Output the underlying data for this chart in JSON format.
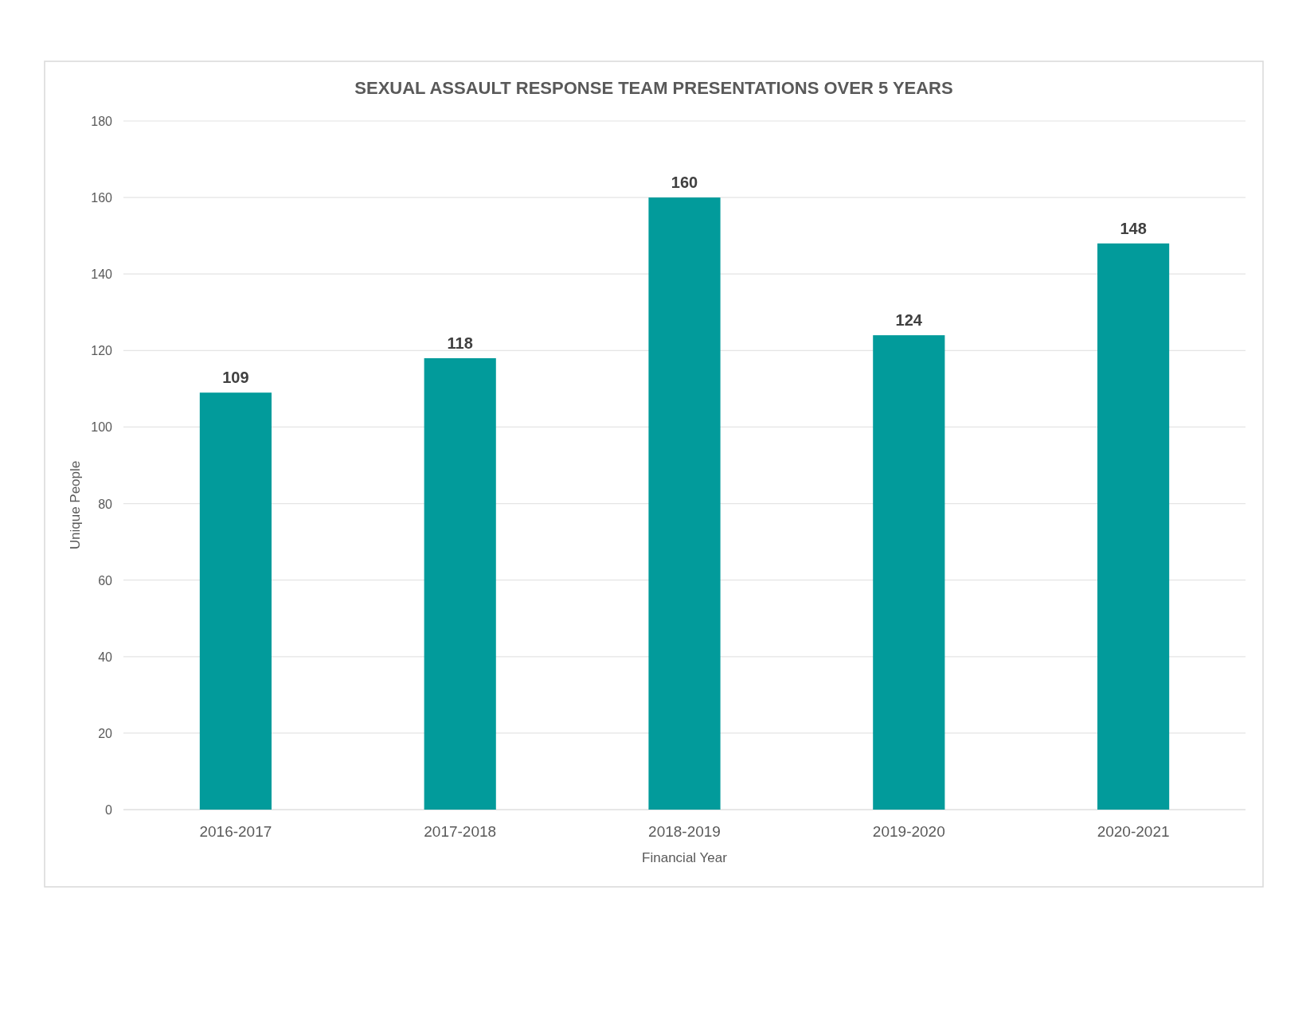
{
  "chart_data": {
    "type": "bar",
    "title": "SEXUAL ASSAULT RESPONSE TEAM PRESENTATIONS OVER 5 YEARS",
    "xlabel": "Financial Year",
    "ylabel": "Unique People",
    "categories": [
      "2016-2017",
      "2017-2018",
      "2018-2019",
      "2019-2020",
      "2020-2021"
    ],
    "values": [
      109,
      118,
      160,
      124,
      148
    ],
    "color": "#029b9b",
    "ylim": [
      0,
      180
    ],
    "yticks": [
      0,
      20,
      40,
      60,
      80,
      100,
      120,
      140,
      160,
      180
    ],
    "grid": "y",
    "data_labels": true
  }
}
